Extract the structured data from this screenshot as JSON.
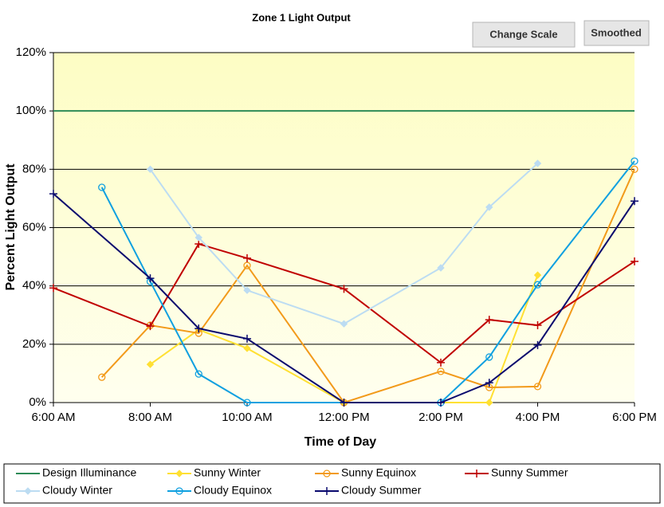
{
  "ui": {
    "buttons": [
      "Change Scale",
      "Smoothed"
    ]
  },
  "chart_data": {
    "type": "line",
    "title": "Zone 1 Light Output",
    "xlabel": "Time of Day",
    "ylabel": "Percent Light Output",
    "xlim": [
      6,
      18
    ],
    "ylim": [
      0,
      120
    ],
    "grid": true,
    "xticks": [
      {
        "value": 6,
        "label": "6:00 AM"
      },
      {
        "value": 8,
        "label": "8:00 AM"
      },
      {
        "value": 10,
        "label": "10:00 AM"
      },
      {
        "value": 12,
        "label": "12:00 PM"
      },
      {
        "value": 14,
        "label": "2:00 PM"
      },
      {
        "value": 16,
        "label": "4:00 PM"
      },
      {
        "value": 18,
        "label": "6:00 PM"
      }
    ],
    "yticks": [
      {
        "value": 0,
        "label": "0%"
      },
      {
        "value": 20,
        "label": "20%"
      },
      {
        "value": 40,
        "label": "40%"
      },
      {
        "value": 60,
        "label": "60%"
      },
      {
        "value": 80,
        "label": "80%"
      },
      {
        "value": 100,
        "label": "100%"
      },
      {
        "value": 120,
        "label": "120%"
      }
    ],
    "series": [
      {
        "name": "Design Illuminance",
        "color": "#2e8b57",
        "marker": "none",
        "x": [
          6,
          18
        ],
        "values": [
          100,
          100
        ]
      },
      {
        "name": "Sunny Winter",
        "color": "#ffe033",
        "marker": "diamond",
        "x": [
          8,
          9,
          10,
          12,
          15,
          16
        ],
        "values": [
          13.1,
          25,
          18.6,
          0,
          0,
          43.7
        ]
      },
      {
        "name": "Sunny Equinox",
        "color": "#f29a1a",
        "marker": "circle",
        "x": [
          7,
          8,
          9,
          10,
          12,
          14,
          15,
          16,
          18
        ],
        "values": [
          8.7,
          26.5,
          23.8,
          47,
          0,
          10.7,
          5.2,
          5.5,
          80
        ]
      },
      {
        "name": "Sunny Summer",
        "color": "#c00000",
        "marker": "plus",
        "x": [
          6,
          8,
          9,
          10,
          12,
          14,
          15,
          16,
          18
        ],
        "values": [
          39.3,
          26.2,
          54.4,
          49.5,
          39,
          13.7,
          28.4,
          26.5,
          48.4
        ]
      },
      {
        "name": "Cloudy Winter",
        "color": "#bcdcf2",
        "marker": "diamond",
        "x": [
          8,
          9,
          10,
          12,
          14,
          15,
          16
        ],
        "values": [
          80,
          56.6,
          38.5,
          27,
          46.2,
          67,
          82
        ]
      },
      {
        "name": "Cloudy Equinox",
        "color": "#10a0e0",
        "marker": "circle",
        "x": [
          7,
          8,
          9,
          10,
          14,
          15,
          16,
          18
        ],
        "values": [
          73.8,
          41.5,
          9.8,
          0,
          0,
          15.6,
          40.4,
          82.8
        ]
      },
      {
        "name": "Cloudy Summer",
        "color": "#0a0a6e",
        "marker": "plus",
        "x": [
          6,
          8,
          9,
          10,
          12,
          14,
          15,
          16,
          18
        ],
        "values": [
          71.6,
          42.6,
          25.4,
          21.9,
          0,
          0,
          6.8,
          19.7,
          69.1
        ]
      }
    ]
  }
}
